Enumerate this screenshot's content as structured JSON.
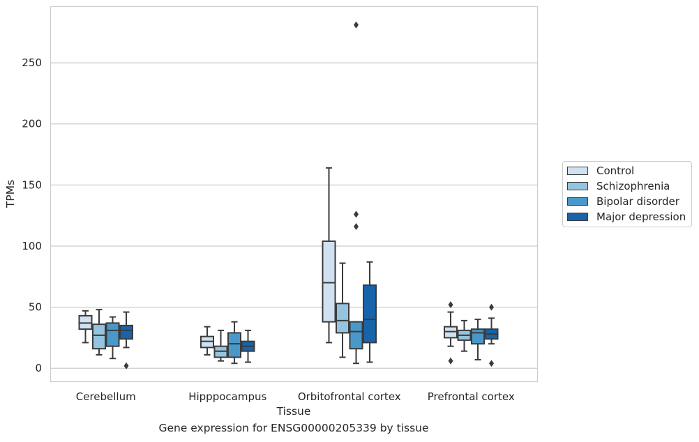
{
  "chart_data": {
    "type": "boxplot",
    "xlabel": "Tissue",
    "ylabel": "TPMs",
    "ylim": [
      -11,
      296
    ],
    "yticks": [
      0,
      50,
      100,
      150,
      200,
      250
    ],
    "grid": true,
    "legend_position": "right",
    "categories": [
      "Cerebellum",
      "Hipppocampus",
      "Orbitofrontal cortex",
      "Prefrontal cortex"
    ],
    "series": [
      {
        "name": "Control",
        "color": "#d0e1f1",
        "boxes": [
          {
            "whislo": 21,
            "q1": 32,
            "med": 37,
            "q3": 43,
            "whishi": 47,
            "fliers": []
          },
          {
            "whislo": 11,
            "q1": 17,
            "med": 22,
            "q3": 26,
            "whishi": 34,
            "fliers": []
          },
          {
            "whislo": 21,
            "q1": 38,
            "med": 70,
            "q3": 104,
            "whishi": 164,
            "fliers": []
          },
          {
            "whislo": 18,
            "q1": 25,
            "med": 30,
            "q3": 34,
            "whishi": 46,
            "fliers": [
              52,
              6
            ]
          }
        ]
      },
      {
        "name": "Schizophrenia",
        "color": "#94c4df",
        "boxes": [
          {
            "whislo": 11,
            "q1": 16,
            "med": 27,
            "q3": 36,
            "whishi": 48,
            "fliers": []
          },
          {
            "whislo": 6,
            "q1": 9,
            "med": 14,
            "q3": 18,
            "whishi": 31,
            "fliers": []
          },
          {
            "whislo": 9,
            "q1": 29,
            "med": 39,
            "q3": 53,
            "whishi": 86,
            "fliers": []
          },
          {
            "whislo": 14,
            "q1": 23,
            "med": 27,
            "q3": 31,
            "whishi": 39,
            "fliers": []
          }
        ]
      },
      {
        "name": "Bipolar disorder",
        "color": "#4a98c9",
        "boxes": [
          {
            "whislo": 8,
            "q1": 18,
            "med": 31,
            "q3": 37,
            "whishi": 42,
            "fliers": []
          },
          {
            "whislo": 4,
            "q1": 9,
            "med": 20,
            "q3": 29,
            "whishi": 38,
            "fliers": []
          },
          {
            "whislo": 4,
            "q1": 16,
            "med": 30,
            "q3": 38,
            "whishi": 38,
            "fliers": [
              126,
              116,
              281
            ]
          },
          {
            "whislo": 7,
            "q1": 20,
            "med": 29,
            "q3": 32,
            "whishi": 40,
            "fliers": []
          }
        ]
      },
      {
        "name": "Major depression",
        "color": "#1764ab",
        "boxes": [
          {
            "whislo": 17,
            "q1": 24,
            "med": 31,
            "q3": 35,
            "whishi": 46,
            "fliers": [
              2
            ]
          },
          {
            "whislo": 5,
            "q1": 14,
            "med": 18,
            "q3": 22,
            "whishi": 31,
            "fliers": []
          },
          {
            "whislo": 5,
            "q1": 21,
            "med": 40,
            "q3": 68,
            "whishi": 87,
            "fliers": []
          },
          {
            "whislo": 20,
            "q1": 24,
            "med": 28,
            "q3": 32,
            "whishi": 41,
            "fliers": [
              50,
              4
            ]
          }
        ]
      }
    ],
    "caption": "Gene expression for ENSG00000205339 by tissue"
  }
}
